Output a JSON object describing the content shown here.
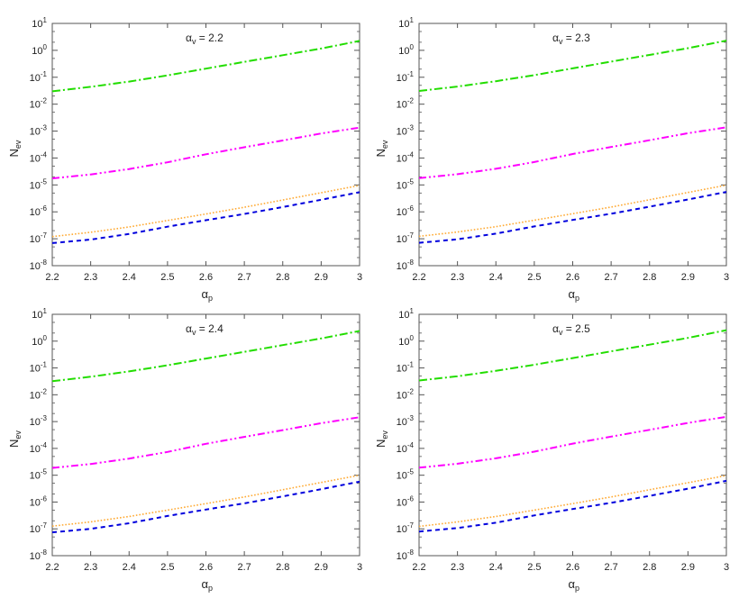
{
  "figure": {
    "layout": "2x2 grid",
    "ylabel_main": "N",
    "ylabel_sub": "ev",
    "xlabel_main": "α",
    "xlabel_sub": "p"
  },
  "colors": {
    "green": "#22dd00",
    "magenta": "#ff00ff",
    "orange": "#ffaa33",
    "blue": "#0000dd",
    "axis": "#555555"
  },
  "chart_data": [
    {
      "type": "line",
      "title": "αv = 2.2",
      "title_main": "α",
      "title_sub": "v",
      "title_value": " = 2.2",
      "xlabel": "αp",
      "ylabel": "Nev",
      "yscale": "log",
      "xlim": [
        2.2,
        3.0
      ],
      "ylim": [
        1e-08,
        10
      ],
      "x": [
        2.2,
        2.3,
        2.4,
        2.5,
        2.6,
        2.7,
        2.8,
        2.9,
        3.0
      ],
      "series": [
        {
          "name": "green dash-dot",
          "color": "#22dd00",
          "style": "dash-dot",
          "values": [
            0.03,
            0.044,
            0.069,
            0.117,
            0.209,
            0.372,
            0.661,
            1.17,
            2.24
          ]
        },
        {
          "name": "magenta dash-dot-dot",
          "color": "#ff00ff",
          "style": "dash-dot-dot",
          "values": [
            1.74e-05,
            2.45e-05,
            3.89e-05,
            6.92e-05,
            0.000138,
            0.000251,
            0.000447,
            0.000813,
            0.00135
          ]
        },
        {
          "name": "orange dotted",
          "color": "#ffaa33",
          "style": "dotted",
          "values": [
            1.2e-07,
            1.74e-07,
            2.75e-07,
            4.79e-07,
            8.32e-07,
            1.48e-06,
            2.75e-06,
            5.13e-06,
            9.55e-06
          ]
        },
        {
          "name": "blue dashed",
          "color": "#0000dd",
          "style": "dashed",
          "values": [
            6.92e-08,
            9.33e-08,
            1.51e-07,
            2.82e-07,
            4.9e-07,
            8.32e-07,
            1.51e-06,
            2.82e-06,
            5.37e-06
          ]
        }
      ]
    },
    {
      "type": "line",
      "title": "αv = 2.3",
      "title_main": "α",
      "title_sub": "v",
      "title_value": " = 2.3",
      "xlabel": "αp",
      "ylabel": "Nev",
      "yscale": "log",
      "xlim": [
        2.2,
        3.0
      ],
      "ylim": [
        1e-08,
        10
      ],
      "x": [
        2.2,
        2.3,
        2.4,
        2.5,
        2.6,
        2.7,
        2.8,
        2.9,
        3.0
      ],
      "series": [
        {
          "name": "green dash-dot",
          "color": "#22dd00",
          "style": "dash-dot",
          "values": [
            0.031,
            0.045,
            0.071,
            0.12,
            0.214,
            0.38,
            0.676,
            1.2,
            2.29
          ]
        },
        {
          "name": "magenta dash-dot-dot",
          "color": "#ff00ff",
          "style": "dash-dot-dot",
          "values": [
            1.78e-05,
            2.51e-05,
            3.98e-05,
            7.08e-05,
            0.000141,
            0.000257,
            0.000457,
            0.000832,
            0.00138
          ]
        },
        {
          "name": "orange dotted",
          "color": "#ffaa33",
          "style": "dotted",
          "values": [
            1.23e-07,
            1.78e-07,
            2.82e-07,
            4.9e-07,
            8.51e-07,
            1.51e-06,
            2.82e-06,
            5.25e-06,
            9.77e-06
          ]
        },
        {
          "name": "blue dashed",
          "color": "#0000dd",
          "style": "dashed",
          "values": [
            7.08e-08,
            9.55e-08,
            1.55e-07,
            2.88e-07,
            5.01e-07,
            8.51e-07,
            1.55e-06,
            2.88e-06,
            5.5e-06
          ]
        }
      ]
    },
    {
      "type": "line",
      "title": "αv = 2.4",
      "title_main": "α",
      "title_sub": "v",
      "title_value": " = 2.4",
      "xlabel": "αp",
      "ylabel": "Nev",
      "yscale": "log",
      "xlim": [
        2.2,
        3.0
      ],
      "ylim": [
        1e-08,
        10
      ],
      "x": [
        2.2,
        2.3,
        2.4,
        2.5,
        2.6,
        2.7,
        2.8,
        2.9,
        3.0
      ],
      "series": [
        {
          "name": "green dash-dot",
          "color": "#22dd00",
          "style": "dash-dot",
          "values": [
            0.032,
            0.047,
            0.074,
            0.126,
            0.224,
            0.398,
            0.708,
            1.26,
            2.4
          ]
        },
        {
          "name": "magenta dash-dot-dot",
          "color": "#ff00ff",
          "style": "dash-dot-dot",
          "values": [
            1.86e-05,
            2.63e-05,
            4.17e-05,
            7.41e-05,
            0.000148,
            0.000269,
            0.000479,
            0.000871,
            0.00145
          ]
        },
        {
          "name": "orange dotted",
          "color": "#ffaa33",
          "style": "dotted",
          "values": [
            1.26e-07,
            1.82e-07,
            2.88e-07,
            5.01e-07,
            8.71e-07,
            1.55e-06,
            2.88e-06,
            5.37e-06,
            1e-05
          ]
        },
        {
          "name": "blue dashed",
          "color": "#0000dd",
          "style": "dashed",
          "values": [
            7.41e-08,
            1e-07,
            1.62e-07,
            3.02e-07,
            5.25e-07,
            8.91e-07,
            1.62e-06,
            3.02e-06,
            5.75e-06
          ]
        }
      ]
    },
    {
      "type": "line",
      "title": "αv = 2.5",
      "title_main": "α",
      "title_sub": "v",
      "title_value": " = 2.5",
      "xlabel": "αp",
      "ylabel": "Nev",
      "yscale": "log",
      "xlim": [
        2.2,
        3.0
      ],
      "ylim": [
        1e-08,
        10
      ],
      "x": [
        2.2,
        2.3,
        2.4,
        2.5,
        2.6,
        2.7,
        2.8,
        2.9,
        3.0
      ],
      "series": [
        {
          "name": "green dash-dot",
          "color": "#22dd00",
          "style": "dash-dot",
          "values": [
            0.034,
            0.049,
            0.078,
            0.132,
            0.234,
            0.417,
            0.741,
            1.32,
            2.57
          ]
        },
        {
          "name": "magenta dash-dot-dot",
          "color": "#ff00ff",
          "style": "dash-dot-dot",
          "values": [
            1.91e-05,
            2.69e-05,
            4.27e-05,
            7.59e-05,
            0.000151,
            0.000275,
            0.00049,
            0.000891,
            0.00151
          ]
        },
        {
          "name": "orange dotted",
          "color": "#ffaa33",
          "style": "dotted",
          "values": [
            1.23e-07,
            1.82e-07,
            2.88e-07,
            5.01e-07,
            8.71e-07,
            1.55e-06,
            2.88e-06,
            5.25e-06,
            9.77e-06
          ]
        },
        {
          "name": "blue dashed",
          "color": "#0000dd",
          "style": "dashed",
          "values": [
            7.94e-08,
            1.07e-07,
            1.7e-07,
            3.16e-07,
            5.5e-07,
            9.33e-07,
            1.7e-06,
            3.16e-06,
            6.17e-06
          ]
        }
      ]
    }
  ],
  "axes": {
    "xticks": [
      "2.2",
      "2.3",
      "2.4",
      "2.5",
      "2.6",
      "2.7",
      "2.8",
      "2.9",
      "3"
    ],
    "yticks_exp": [
      "1",
      "0",
      "-1",
      "-2",
      "-3",
      "-4",
      "-5",
      "-6",
      "-7",
      "-8"
    ],
    "ytick_base": "10"
  }
}
